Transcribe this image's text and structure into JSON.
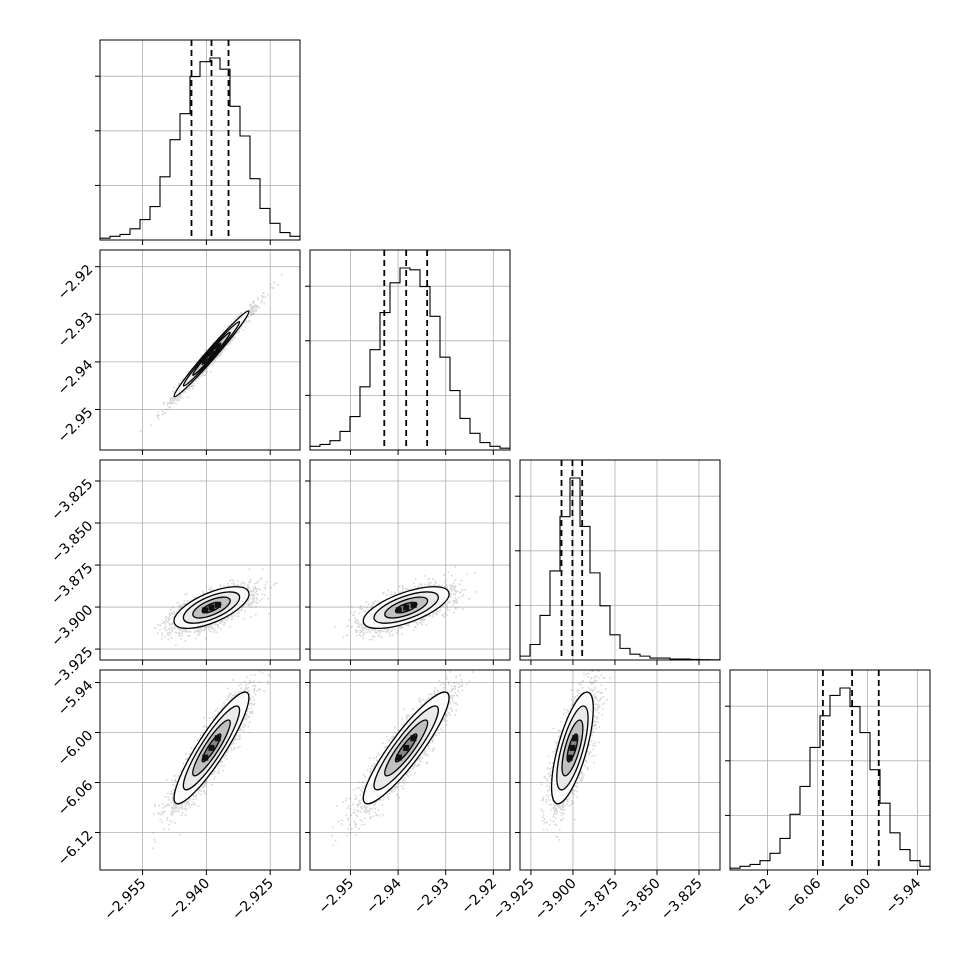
{
  "chart_data": {
    "type": "corner",
    "parameters": [
      {
        "range": [
          -2.965,
          -2.918
        ],
        "ticks": [
          -2.955,
          -2.94,
          -2.925
        ],
        "tick_labels": [
          "−2.955",
          "−2.940",
          "−2.925"
        ],
        "quantiles": [
          -2.9435,
          -2.9388,
          -2.9348
        ],
        "hist": [
          1,
          2,
          3,
          6,
          11,
          18,
          34,
          54,
          68,
          88,
          96,
          98,
          92,
          72,
          56,
          33,
          17,
          9,
          4,
          2
        ]
      },
      {
        "range": [
          -2.9585,
          -2.9165
        ],
        "ticks": [
          -2.95,
          -2.94,
          -2.93,
          -2.92
        ],
        "tick_labels": [
          "−2.95",
          "−2.94",
          "−2.93",
          "−2.92"
        ],
        "quantiles": [
          -2.9429,
          -2.9383,
          -2.9339
        ],
        "hist": [
          2,
          3,
          5,
          10,
          18,
          34,
          54,
          74,
          90,
          98,
          97,
          88,
          72,
          50,
          32,
          17,
          9,
          4,
          2,
          1
        ]
      },
      {
        "range": [
          -3.9315,
          -3.8125
        ],
        "ticks": [
          -3.925,
          -3.9,
          -3.875,
          -3.85,
          -3.825
        ],
        "tick_labels": [
          "−3.925",
          "−3.900",
          "−3.875",
          "−3.850",
          "−3.825"
        ],
        "quantiles": [
          -3.9068,
          -3.9003,
          -3.8945
        ],
        "hist": [
          2,
          8,
          23,
          46,
          74,
          94,
          69,
          45,
          28,
          13,
          6,
          3,
          2,
          1,
          1,
          0.5,
          0.5,
          0.3,
          0.2,
          0.1
        ]
      },
      {
        "range": [
          -6.165,
          -5.925
        ],
        "ticks": [
          -6.12,
          -6.06,
          -6.0,
          -5.94
        ],
        "tick_labels": [
          "−6.12",
          "−6.06",
          "−6.00",
          "−5.94"
        ],
        "quantiles": [
          -6.0535,
          -6.0185,
          -5.9865
        ],
        "hist": [
          1,
          2,
          3,
          5,
          9,
          17,
          30,
          45,
          66,
          83,
          94,
          98,
          88,
          74,
          54,
          36,
          20,
          11,
          5,
          2
        ]
      }
    ],
    "pairs": [
      {
        "row": 1,
        "col": 0,
        "mean": [
          -2.9388,
          -2.9383
        ],
        "sd": [
          0.0044,
          0.0045
        ],
        "corr": 0.985
      },
      {
        "row": 2,
        "col": 0,
        "mean": [
          -2.9388,
          -3.9003
        ],
        "sd": [
          0.0044,
          0.0062
        ],
        "corr": 0.65
      },
      {
        "row": 2,
        "col": 1,
        "mean": [
          -2.9383,
          -3.9003
        ],
        "sd": [
          0.0045,
          0.0062
        ],
        "corr": 0.65
      },
      {
        "row": 3,
        "col": 0,
        "mean": [
          -2.9388,
          -6.0185
        ],
        "sd": [
          0.0044,
          0.0335
        ],
        "corr": 0.9
      },
      {
        "row": 3,
        "col": 1,
        "mean": [
          -2.9383,
          -6.0185
        ],
        "sd": [
          0.0045,
          0.0335
        ],
        "corr": 0.9
      },
      {
        "row": 3,
        "col": 2,
        "mean": [
          -3.9003,
          -6.0185
        ],
        "sd": [
          0.0062,
          0.0335
        ],
        "corr": 0.7
      }
    ],
    "contour_levels_sigma": [
      0.5,
      1.0,
      1.5,
      2.0
    ],
    "grid": true,
    "quantile_line_style": "dashed",
    "point_color": "#707070",
    "contour_color": "#000000"
  }
}
